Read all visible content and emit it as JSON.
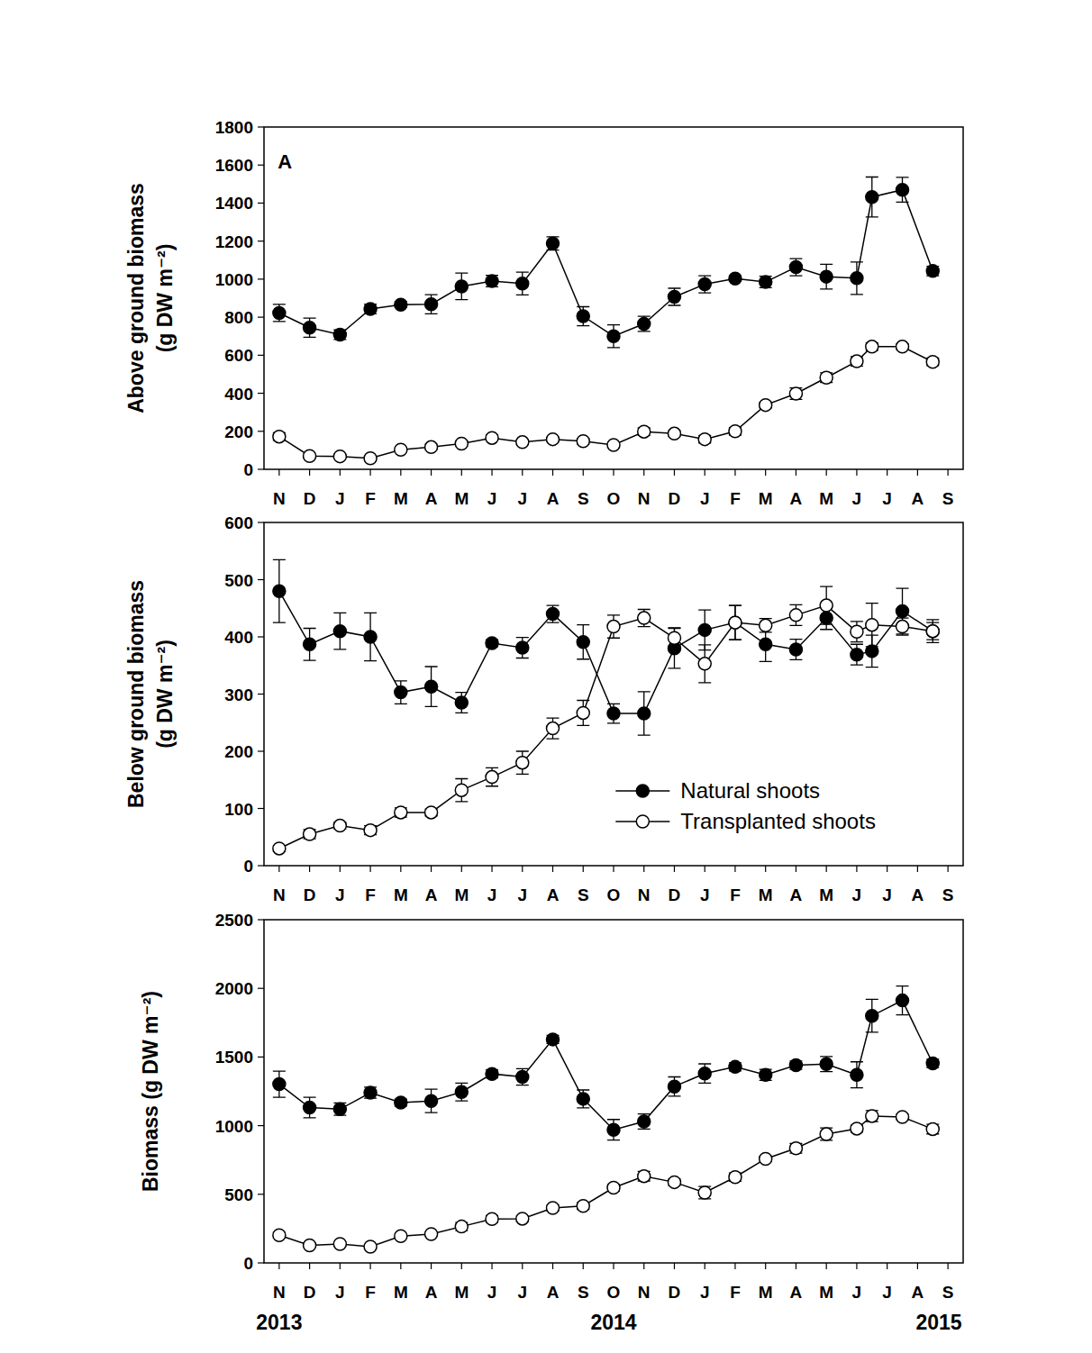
{
  "chart_data": [
    {
      "type": "line",
      "ylabel": [
        "Above ground biomass",
        "(g DW m⁻²)"
      ],
      "x": [
        0,
        1,
        2,
        3,
        4,
        5,
        6,
        7,
        8,
        9,
        10,
        11,
        12,
        13,
        14,
        15,
        16,
        17,
        18,
        19,
        19.5,
        20.5,
        21.5
      ],
      "xlim": [
        -0.5,
        22.5
      ],
      "xticks": [
        {
          "value": 0,
          "label": "N"
        },
        {
          "value": 1,
          "label": "D"
        },
        {
          "value": 2,
          "label": "J"
        },
        {
          "value": 3,
          "label": "F"
        },
        {
          "value": 4,
          "label": "M"
        },
        {
          "value": 5,
          "label": "A"
        },
        {
          "value": 6,
          "label": "M"
        },
        {
          "value": 7,
          "label": "J"
        },
        {
          "value": 8,
          "label": "J"
        },
        {
          "value": 9,
          "label": "A"
        },
        {
          "value": 10,
          "label": "S"
        },
        {
          "value": 11,
          "label": "O"
        },
        {
          "value": 12,
          "label": "N"
        },
        {
          "value": 13,
          "label": "D"
        },
        {
          "value": 14,
          "label": "J"
        },
        {
          "value": 15,
          "label": "F"
        },
        {
          "value": 16,
          "label": "M"
        },
        {
          "value": 17,
          "label": "A"
        },
        {
          "value": 18,
          "label": "M"
        },
        {
          "value": 19,
          "label": "J"
        },
        {
          "value": 20,
          "label": "J"
        },
        {
          "value": 21,
          "label": "A"
        },
        {
          "value": 22,
          "label": "S"
        }
      ],
      "ylim": [
        0,
        1800
      ],
      "yticks": [
        0,
        200,
        400,
        600,
        800,
        1000,
        1200,
        1400,
        1600,
        1800
      ],
      "annotations": [
        {
          "text": "A",
          "x": -0.05,
          "y": 1580
        }
      ],
      "series": [
        {
          "color": "#000000",
          "marker": "filled_circle",
          "values": [
            822,
            745,
            708,
            843,
            866,
            868,
            962,
            990,
            977,
            1188,
            805,
            700,
            765,
            907,
            973,
            1003,
            985,
            1063,
            1013,
            1005,
            1432,
            1470,
            1043
          ],
          "errors": [
            45,
            50,
            25,
            25,
            15,
            50,
            70,
            30,
            60,
            35,
            50,
            60,
            40,
            45,
            45,
            15,
            30,
            45,
            65,
            85,
            105,
            65,
            25
          ]
        },
        {
          "color": "#000000",
          "marker": "open_circle",
          "values": [
            172,
            70,
            68,
            58,
            103,
            117,
            135,
            165,
            143,
            158,
            148,
            128,
            198,
            188,
            158,
            200,
            338,
            398,
            482,
            568,
            645,
            645,
            565
          ],
          "errors": [
            20,
            10,
            8,
            8,
            10,
            15,
            15,
            15,
            12,
            10,
            15,
            15,
            20,
            15,
            20,
            20,
            15,
            30,
            25,
            25,
            20,
            15,
            20
          ]
        }
      ]
    },
    {
      "type": "line",
      "ylabel": [
        "Below ground biomass",
        "(g DW m⁻²)"
      ],
      "x": [
        0,
        1,
        2,
        3,
        4,
        5,
        6,
        7,
        8,
        9,
        10,
        11,
        12,
        13,
        14,
        15,
        16,
        17,
        18,
        19,
        19.5,
        20.5,
        21.5
      ],
      "xlim": [
        -0.5,
        22.5
      ],
      "xticks": [
        {
          "value": 0,
          "label": "N"
        },
        {
          "value": 1,
          "label": "D"
        },
        {
          "value": 2,
          "label": "J"
        },
        {
          "value": 3,
          "label": "F"
        },
        {
          "value": 4,
          "label": "M"
        },
        {
          "value": 5,
          "label": "A"
        },
        {
          "value": 6,
          "label": "M"
        },
        {
          "value": 7,
          "label": "J"
        },
        {
          "value": 8,
          "label": "J"
        },
        {
          "value": 9,
          "label": "A"
        },
        {
          "value": 10,
          "label": "S"
        },
        {
          "value": 11,
          "label": "O"
        },
        {
          "value": 12,
          "label": "N"
        },
        {
          "value": 13,
          "label": "D"
        },
        {
          "value": 14,
          "label": "J"
        },
        {
          "value": 15,
          "label": "F"
        },
        {
          "value": 16,
          "label": "M"
        },
        {
          "value": 17,
          "label": "A"
        },
        {
          "value": 18,
          "label": "M"
        },
        {
          "value": 19,
          "label": "J"
        },
        {
          "value": 20,
          "label": "J"
        },
        {
          "value": 21,
          "label": "A"
        },
        {
          "value": 22,
          "label": "S"
        }
      ],
      "ylim": [
        0,
        600
      ],
      "yticks": [
        0,
        100,
        200,
        300,
        400,
        500,
        600
      ],
      "legend": "lower right",
      "series": [
        {
          "name": "Natural shoots",
          "color": "#000000",
          "marker": "filled_circle",
          "values": [
            480,
            387,
            410,
            400,
            303,
            313,
            285,
            389,
            381,
            440,
            391,
            266,
            266,
            380,
            412,
            425,
            387,
            378,
            433,
            369,
            375,
            445,
            410
          ],
          "errors": [
            55,
            28,
            32,
            42,
            20,
            35,
            18,
            6,
            18,
            15,
            30,
            17,
            38,
            35,
            35,
            30,
            30,
            18,
            20,
            18,
            28,
            40,
            15
          ]
        },
        {
          "name": "Transplanted shoots",
          "color": "#000000",
          "marker": "open_circle",
          "values": [
            30,
            55,
            70,
            62,
            93,
            93,
            132,
            155,
            180,
            240,
            267,
            418,
            433,
            398,
            353,
            425,
            420,
            438,
            455,
            409,
            421,
            418,
            410
          ],
          "errors": [
            5,
            8,
            6,
            8,
            8,
            6,
            20,
            16,
            20,
            18,
            22,
            20,
            15,
            18,
            33,
            30,
            12,
            18,
            33,
            18,
            38,
            15,
            20
          ]
        }
      ]
    },
    {
      "type": "line",
      "ylabel": [
        "Biomass (g DW m⁻²)"
      ],
      "x": [
        0,
        1,
        2,
        3,
        4,
        5,
        6,
        7,
        8,
        9,
        10,
        11,
        12,
        13,
        14,
        15,
        16,
        17,
        18,
        19,
        19.5,
        20.5,
        21.5
      ],
      "xlim": [
        -0.5,
        22.5
      ],
      "xticks": [
        {
          "value": 0,
          "label": "N"
        },
        {
          "value": 1,
          "label": "D"
        },
        {
          "value": 2,
          "label": "J"
        },
        {
          "value": 3,
          "label": "F"
        },
        {
          "value": 4,
          "label": "M"
        },
        {
          "value": 5,
          "label": "A"
        },
        {
          "value": 6,
          "label": "M"
        },
        {
          "value": 7,
          "label": "J"
        },
        {
          "value": 8,
          "label": "J"
        },
        {
          "value": 9,
          "label": "A"
        },
        {
          "value": 10,
          "label": "S"
        },
        {
          "value": 11,
          "label": "O"
        },
        {
          "value": 12,
          "label": "N"
        },
        {
          "value": 13,
          "label": "D"
        },
        {
          "value": 14,
          "label": "J"
        },
        {
          "value": 15,
          "label": "F"
        },
        {
          "value": 16,
          "label": "M"
        },
        {
          "value": 17,
          "label": "A"
        },
        {
          "value": 18,
          "label": "M"
        },
        {
          "value": 19,
          "label": "J"
        },
        {
          "value": 20,
          "label": "J"
        },
        {
          "value": 21,
          "label": "A"
        },
        {
          "value": 22,
          "label": "S"
        }
      ],
      "ylim": [
        0,
        2500
      ],
      "yticks": [
        0,
        500,
        1000,
        1500,
        2000,
        2500
      ],
      "annotations": [
        {
          "text": "2013",
          "x": 0
        },
        {
          "text": "2014",
          "x": 11
        },
        {
          "text": "2015",
          "x": 21.7
        }
      ],
      "series": [
        {
          "color": "#000000",
          "marker": "filled_circle",
          "values": [
            1302,
            1132,
            1120,
            1240,
            1168,
            1180,
            1245,
            1377,
            1355,
            1628,
            1195,
            970,
            1030,
            1285,
            1380,
            1428,
            1370,
            1440,
            1448,
            1370,
            1800,
            1912,
            1453
          ],
          "errors": [
            95,
            75,
            45,
            40,
            25,
            85,
            65,
            30,
            60,
            30,
            65,
            75,
            55,
            70,
            70,
            30,
            40,
            30,
            55,
            95,
            120,
            105,
            30
          ]
        },
        {
          "color": "#000000",
          "marker": "open_circle",
          "values": [
            202,
            128,
            138,
            118,
            195,
            210,
            265,
            320,
            322,
            400,
            415,
            548,
            632,
            588,
            512,
            625,
            758,
            835,
            938,
            978,
            1070,
            1063,
            975
          ],
          "errors": [
            20,
            15,
            15,
            12,
            15,
            15,
            30,
            25,
            20,
            20,
            25,
            25,
            35,
            25,
            45,
            30,
            20,
            35,
            45,
            25,
            40,
            20,
            35
          ]
        }
      ]
    }
  ]
}
